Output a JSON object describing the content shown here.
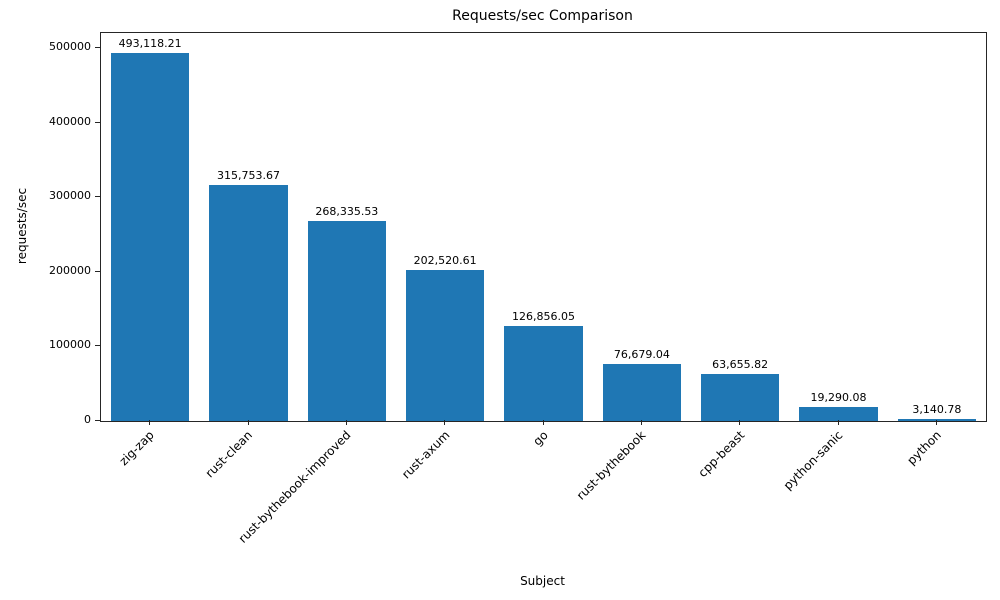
{
  "chart_data": {
    "type": "bar",
    "title": "Requests/sec Comparison",
    "xlabel": "Subject",
    "ylabel": "requests/sec",
    "categories": [
      "zig-zap",
      "rust-clean",
      "rust-bythebook-improved",
      "rust-axum",
      "go",
      "rust-bythebook",
      "cpp-beast",
      "python-sanic",
      "python"
    ],
    "values": [
      493118.21,
      315753.67,
      268335.53,
      202520.61,
      126856.05,
      76679.04,
      63655.82,
      19290.08,
      3140.78
    ],
    "value_labels": [
      "493,118.21",
      "315,753.67",
      "268,335.53",
      "202,520.61",
      "126,856.05",
      "76,679.04",
      "63,655.82",
      "19,290.08",
      "3,140.78"
    ],
    "ylim": [
      0,
      520000
    ],
    "yticks": [
      0,
      100000,
      200000,
      300000,
      400000,
      500000
    ],
    "ytick_labels": [
      "0",
      "100000",
      "200000",
      "300000",
      "400000",
      "500000"
    ],
    "bar_color": "#1f77b4",
    "grid": false,
    "legend": null
  }
}
